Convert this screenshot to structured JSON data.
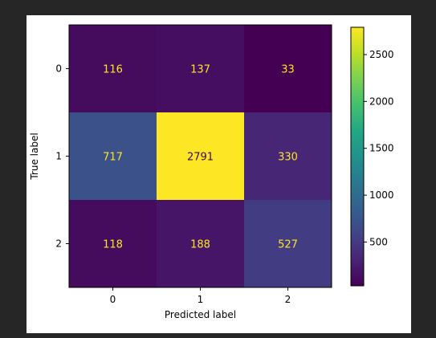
{
  "chart_data": {
    "type": "heatmap",
    "title": "",
    "xlabel": "Predicted label",
    "ylabel": "True label",
    "x_categories": [
      "0",
      "1",
      "2"
    ],
    "y_categories": [
      "0",
      "1",
      "2"
    ],
    "values": [
      [
        116,
        137,
        33
      ],
      [
        717,
        2791,
        330
      ],
      [
        118,
        188,
        527
      ]
    ],
    "colormap": "viridis",
    "low_text_color": "#fde725",
    "high_text_color": "#440154",
    "colorbar": {
      "min": 33,
      "max": 2791,
      "ticks": [
        500,
        1000,
        1500,
        2000,
        2500
      ]
    },
    "grid": false
  }
}
